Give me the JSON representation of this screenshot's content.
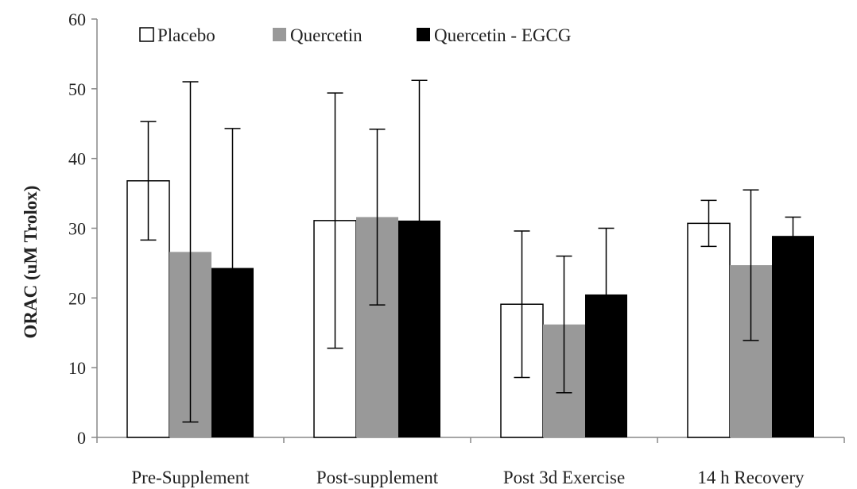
{
  "chart_data": {
    "type": "bar",
    "title": "",
    "xlabel": "",
    "ylabel": "ORAC (uM Trolox)",
    "ylim": [
      0,
      60
    ],
    "yticks": [
      0,
      10,
      20,
      30,
      40,
      50,
      60
    ],
    "grid": false,
    "legend_position": "top-left",
    "categories": [
      "Pre-Supplement",
      "Post-supplement",
      "Post 3d Exercise",
      "14 h Recovery"
    ],
    "series": [
      {
        "name": "Placebo",
        "color": "#ffffff",
        "values": [
          36.8,
          31.1,
          19.1,
          30.7
        ],
        "error": [
          8.5,
          18.3,
          10.5,
          3.3
        ]
      },
      {
        "name": "Quercetin",
        "color": "#999999",
        "values": [
          26.6,
          31.6,
          16.2,
          24.7
        ],
        "error": [
          24.4,
          12.6,
          9.8,
          10.8
        ]
      },
      {
        "name": "Quercetin - EGCG",
        "color": "#000000",
        "values": [
          24.3,
          31.1,
          20.5,
          28.9
        ],
        "error": [
          20.0,
          20.1,
          9.5,
          2.7
        ]
      }
    ]
  }
}
